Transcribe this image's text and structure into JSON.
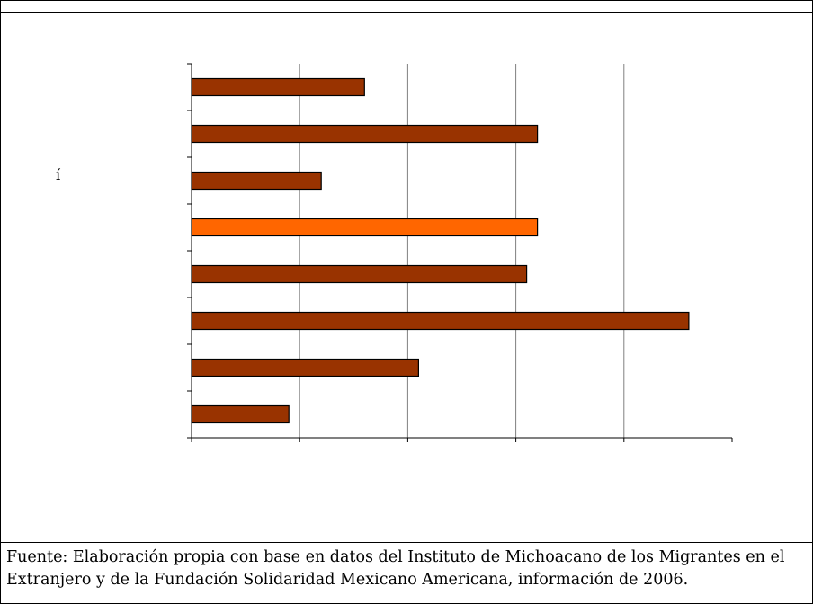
{
  "chart_data": {
    "type": "bar",
    "orientation": "horizontal",
    "title": "",
    "xlabel": "",
    "ylabel": "",
    "categories": [
      "",
      "",
      "",
      "",
      "",
      "",
      "",
      ""
    ],
    "values": [
      1.6,
      3.2,
      1.2,
      3.2,
      3.1,
      4.6,
      2.1,
      0.9
    ],
    "xlim": [
      0,
      5
    ],
    "grid": "vertical",
    "colors": [
      "#993300",
      "#993300",
      "#993300",
      "#FF6600",
      "#993300",
      "#993300",
      "#993300",
      "#993300"
    ],
    "highlight_index": 3
  },
  "stray_text": "í",
  "caption": "Fuente: Elaboración propia con base en datos del Instituto de Michoacano de los Migrantes en el Extranjero y de la Fundación Solidaridad Mexicano Americana, información de 2006.",
  "border_color": "#000000",
  "gridline_color": "#808080"
}
